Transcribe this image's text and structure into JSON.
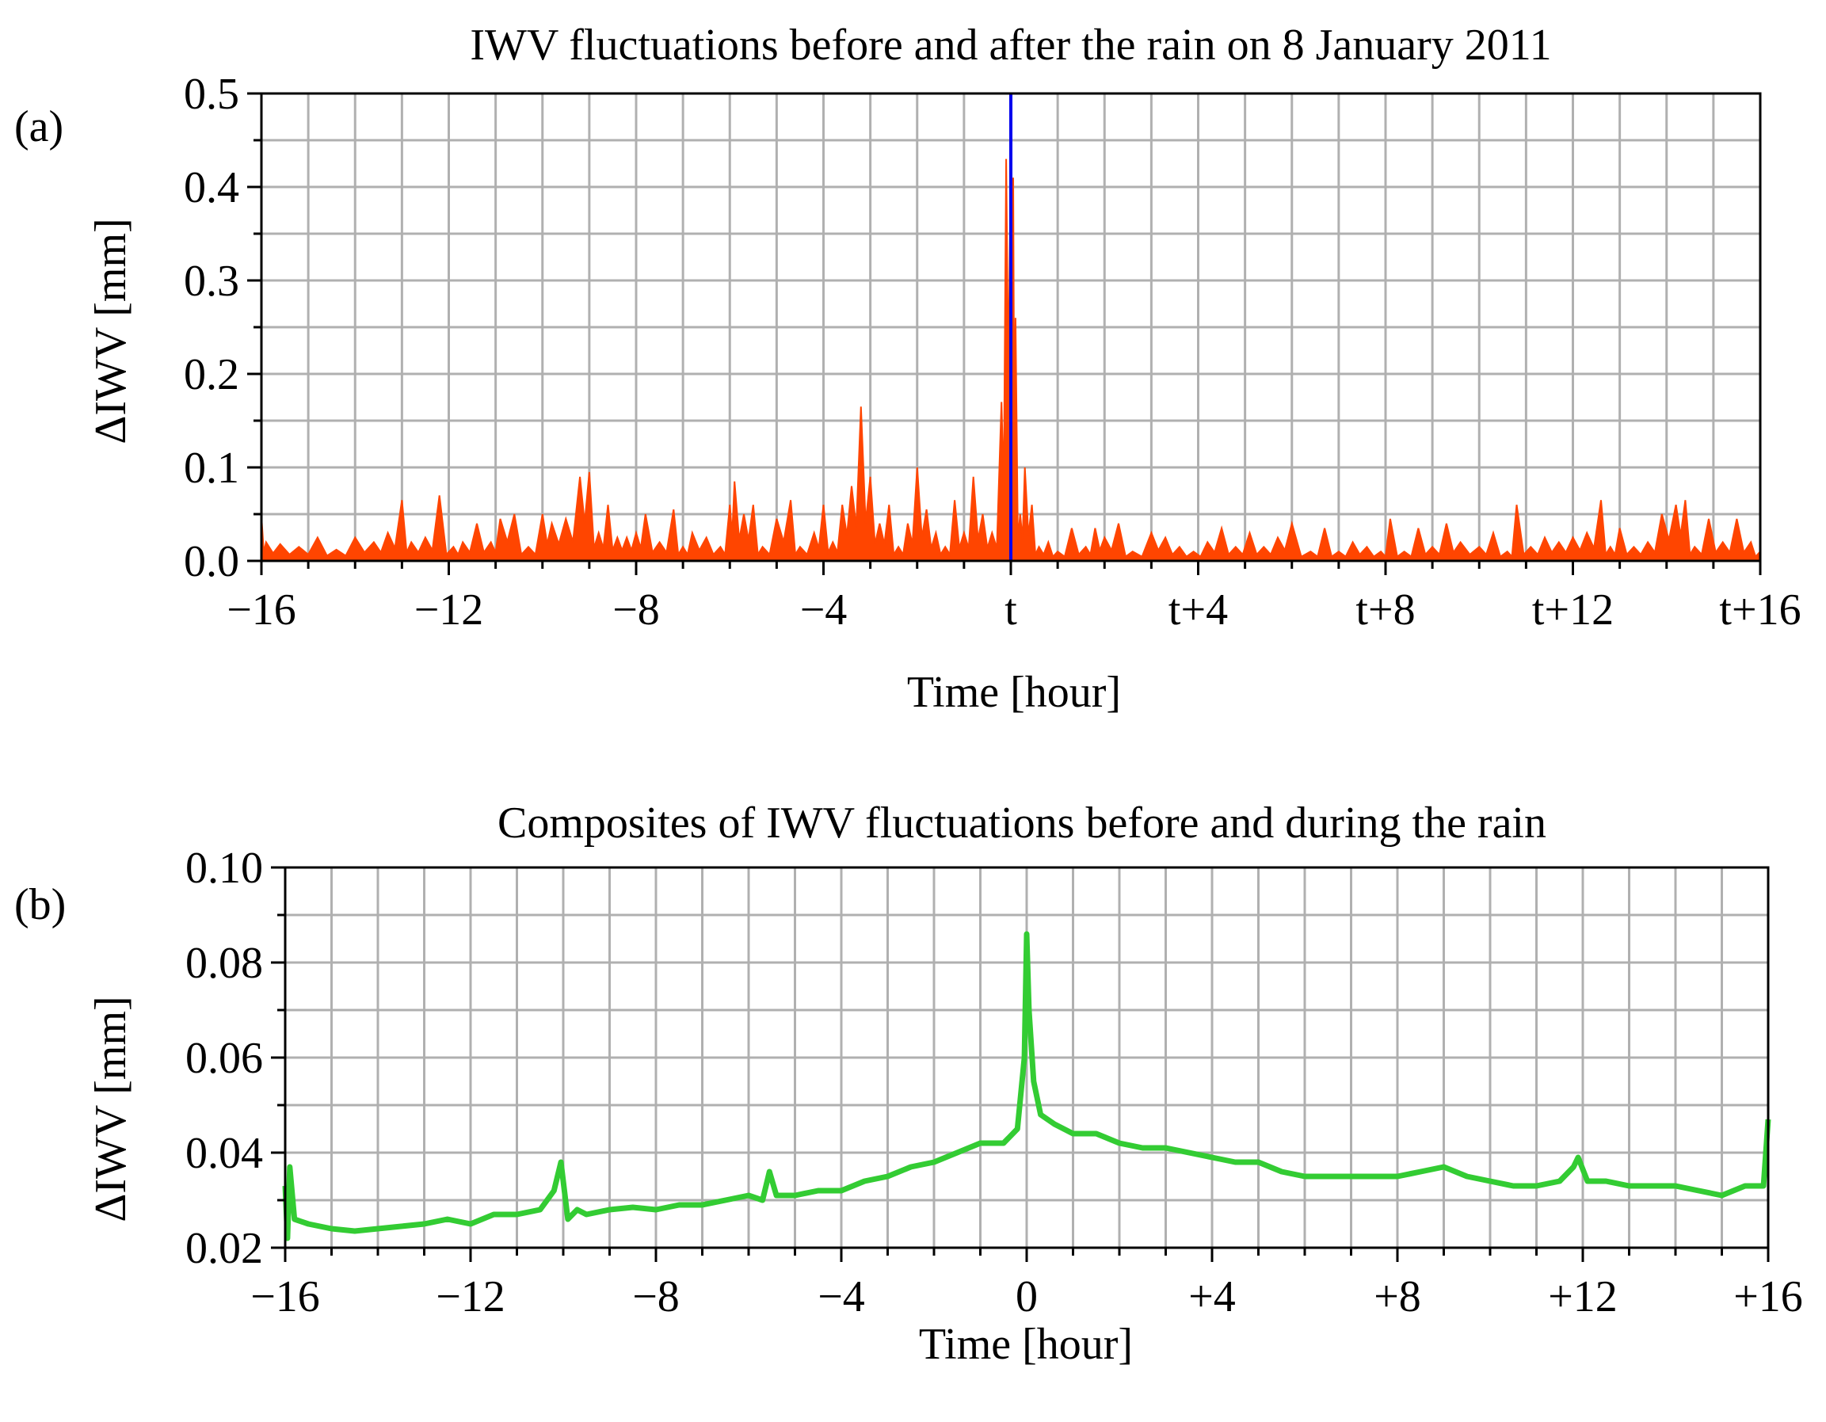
{
  "colors": {
    "series_a": "#ff4500",
    "marker_a": "#0000ee",
    "series_b": "#33cc33",
    "grid": "#b0b0b0",
    "axis": "#000000"
  },
  "chart_data": [
    {
      "type": "area",
      "panel_label": "(a)",
      "title": "IWV fluctuations before and after the rain on 8 January 2011",
      "xlabel": "Time [hour]",
      "ylabel": "ΔIWV [mm]",
      "xlim": [
        -16,
        16
      ],
      "ylim": [
        0.0,
        0.5
      ],
      "grid": true,
      "x_grid_step": 1,
      "y_grid_step": 0.05,
      "x_ticks": [
        -16,
        -12,
        -8,
        -4,
        0,
        4,
        8,
        12,
        16
      ],
      "x_tick_labels": [
        "−16",
        "−12",
        "−8",
        "−4",
        "t",
        "t+4",
        "t+8",
        "t+12",
        "t+16"
      ],
      "y_ticks": [
        0.0,
        0.1,
        0.2,
        0.3,
        0.4,
        0.5
      ],
      "y_tick_labels": [
        "0.0",
        "0.1",
        "0.2",
        "0.3",
        "0.4",
        "0.5"
      ],
      "vertical_marker_x": 0,
      "series": [
        {
          "name": "IWV fluctuation",
          "x": [
            -16.0,
            -15.9,
            -15.6,
            -15.2,
            -14.8,
            -14.4,
            -14.0,
            -13.6,
            -13.3,
            -13.0,
            -12.8,
            -12.5,
            -12.2,
            -11.9,
            -11.7,
            -11.4,
            -11.1,
            -10.9,
            -10.6,
            -10.3,
            -10.0,
            -9.8,
            -9.5,
            -9.2,
            -9.0,
            -8.8,
            -8.6,
            -8.4,
            -8.2,
            -8.0,
            -7.8,
            -7.5,
            -7.2,
            -7.0,
            -6.8,
            -6.5,
            -6.2,
            -6.0,
            -5.9,
            -5.7,
            -5.5,
            -5.3,
            -5.0,
            -4.7,
            -4.5,
            -4.2,
            -4.0,
            -3.8,
            -3.6,
            -3.4,
            -3.2,
            -3.0,
            -2.8,
            -2.6,
            -2.4,
            -2.2,
            -2.0,
            -1.8,
            -1.6,
            -1.4,
            -1.2,
            -1.0,
            -0.8,
            -0.6,
            -0.4,
            -0.2,
            -0.1,
            0.0,
            0.05,
            0.1,
            0.2,
            0.3,
            0.45,
            0.6,
            0.8,
            1.0,
            1.3,
            1.6,
            1.8,
            2.0,
            2.3,
            2.6,
            3.0,
            3.3,
            3.6,
            3.9,
            4.2,
            4.5,
            4.8,
            5.1,
            5.4,
            5.7,
            6.0,
            6.4,
            6.7,
            7.0,
            7.3,
            7.6,
            7.9,
            8.1,
            8.4,
            8.7,
            9.0,
            9.3,
            9.6,
            10.0,
            10.3,
            10.6,
            10.8,
            11.1,
            11.4,
            11.7,
            12.0,
            12.3,
            12.6,
            12.8,
            13.0,
            13.3,
            13.6,
            13.9,
            14.2,
            14.4,
            14.6,
            14.9,
            15.2,
            15.5,
            15.8,
            16.0
          ],
          "y": [
            0.048,
            0.02,
            0.018,
            0.015,
            0.025,
            0.012,
            0.025,
            0.02,
            0.03,
            0.065,
            0.02,
            0.025,
            0.07,
            0.015,
            0.02,
            0.04,
            0.02,
            0.045,
            0.05,
            0.015,
            0.05,
            0.04,
            0.045,
            0.09,
            0.095,
            0.03,
            0.06,
            0.025,
            0.025,
            0.03,
            0.05,
            0.02,
            0.055,
            0.015,
            0.03,
            0.025,
            0.015,
            0.06,
            0.085,
            0.05,
            0.06,
            0.015,
            0.045,
            0.065,
            0.015,
            0.03,
            0.06,
            0.02,
            0.06,
            0.08,
            0.165,
            0.09,
            0.04,
            0.06,
            0.015,
            0.04,
            0.1,
            0.055,
            0.03,
            0.015,
            0.065,
            0.03,
            0.09,
            0.05,
            0.03,
            0.17,
            0.43,
            0.44,
            0.41,
            0.26,
            0.05,
            0.1,
            0.06,
            0.015,
            0.02,
            0.01,
            0.035,
            0.015,
            0.035,
            0.025,
            0.04,
            0.01,
            0.03,
            0.025,
            0.015,
            0.01,
            0.02,
            0.035,
            0.015,
            0.03,
            0.015,
            0.025,
            0.04,
            0.01,
            0.035,
            0.01,
            0.02,
            0.015,
            0.01,
            0.045,
            0.01,
            0.035,
            0.015,
            0.04,
            0.02,
            0.015,
            0.03,
            0.01,
            0.06,
            0.015,
            0.025,
            0.02,
            0.025,
            0.03,
            0.065,
            0.015,
            0.035,
            0.015,
            0.02,
            0.05,
            0.06,
            0.065,
            0.015,
            0.045,
            0.02,
            0.045,
            0.02,
            0.01
          ]
        }
      ]
    },
    {
      "type": "line",
      "panel_label": "(b)",
      "title": "Composites of IWV fluctuations before and during the rain",
      "xlabel": "Time [hour]",
      "ylabel": "ΔIWV [mm]",
      "xlim": [
        -16,
        16
      ],
      "ylim": [
        0.02,
        0.1
      ],
      "grid": true,
      "x_grid_step": 1,
      "y_grid_step": 0.01,
      "x_ticks": [
        -16,
        -12,
        -8,
        -4,
        0,
        4,
        8,
        12,
        16
      ],
      "x_tick_labels": [
        "−16",
        "−12",
        "−8",
        "−4",
        "0",
        "+4",
        "+8",
        "+12",
        "+16"
      ],
      "y_ticks": [
        0.02,
        0.04,
        0.06,
        0.08,
        0.1
      ],
      "y_tick_labels": [
        "0.02",
        "0.04",
        "0.06",
        "0.08",
        "0.10"
      ],
      "series": [
        {
          "name": "Composite IWV fluctuation",
          "x": [
            -16.0,
            -15.95,
            -15.9,
            -15.8,
            -15.5,
            -15.0,
            -14.5,
            -14.0,
            -13.5,
            -13.0,
            -12.5,
            -12.0,
            -11.5,
            -11.0,
            -10.5,
            -10.2,
            -10.05,
            -9.9,
            -9.7,
            -9.5,
            -9.0,
            -8.5,
            -8.0,
            -7.5,
            -7.0,
            -6.5,
            -6.0,
            -5.7,
            -5.55,
            -5.4,
            -5.0,
            -4.5,
            -4.0,
            -3.5,
            -3.0,
            -2.5,
            -2.0,
            -1.5,
            -1.0,
            -0.5,
            -0.2,
            -0.05,
            0.0,
            0.05,
            0.15,
            0.3,
            0.6,
            1.0,
            1.5,
            2.0,
            2.5,
            3.0,
            3.5,
            4.0,
            4.5,
            5.0,
            5.5,
            6.0,
            6.5,
            7.0,
            7.5,
            8.0,
            8.5,
            9.0,
            9.5,
            10.0,
            10.5,
            11.0,
            11.5,
            11.8,
            11.9,
            12.1,
            12.5,
            13.0,
            13.5,
            14.0,
            14.5,
            15.0,
            15.5,
            15.9,
            16.0
          ],
          "y": [
            0.033,
            0.022,
            0.037,
            0.026,
            0.025,
            0.024,
            0.0235,
            0.024,
            0.0245,
            0.025,
            0.026,
            0.025,
            0.027,
            0.027,
            0.028,
            0.032,
            0.038,
            0.026,
            0.028,
            0.027,
            0.028,
            0.0285,
            0.028,
            0.029,
            0.029,
            0.03,
            0.031,
            0.03,
            0.036,
            0.031,
            0.031,
            0.032,
            0.032,
            0.034,
            0.035,
            0.037,
            0.038,
            0.04,
            0.042,
            0.042,
            0.045,
            0.06,
            0.086,
            0.07,
            0.055,
            0.048,
            0.046,
            0.044,
            0.044,
            0.042,
            0.041,
            0.041,
            0.04,
            0.039,
            0.038,
            0.038,
            0.036,
            0.035,
            0.035,
            0.035,
            0.035,
            0.035,
            0.036,
            0.037,
            0.035,
            0.034,
            0.033,
            0.033,
            0.034,
            0.037,
            0.039,
            0.034,
            0.034,
            0.033,
            0.033,
            0.033,
            0.032,
            0.031,
            0.033,
            0.033,
            0.047
          ]
        }
      ]
    }
  ]
}
